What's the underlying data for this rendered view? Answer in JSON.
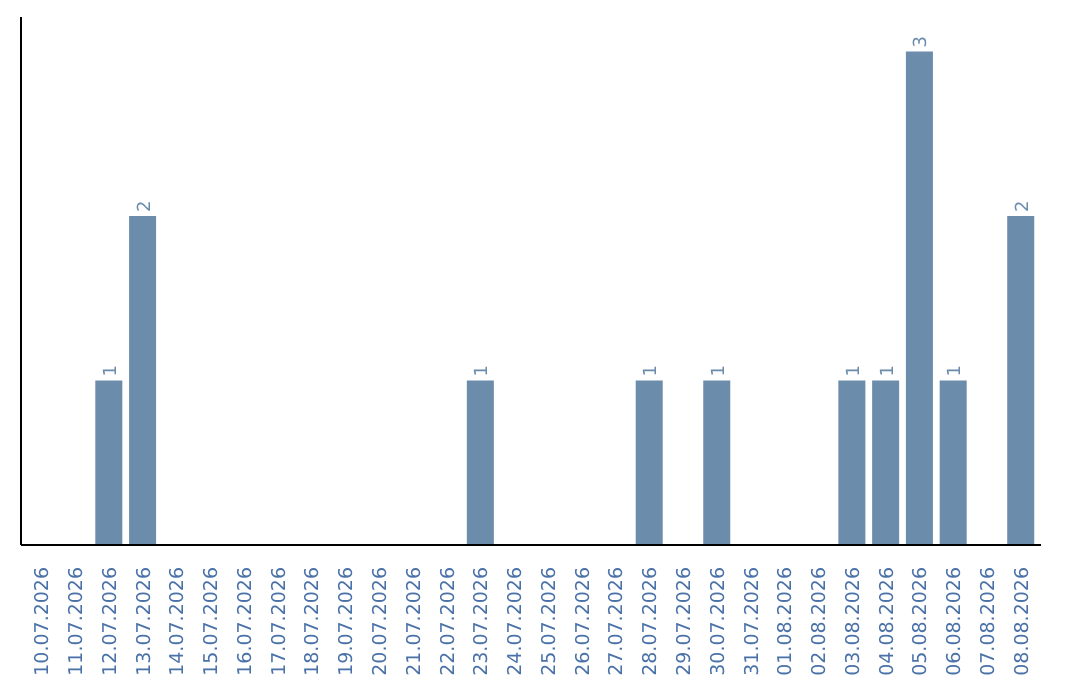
{
  "chart_data": {
    "type": "bar",
    "categories": [
      "10.07.2026",
      "11.07.2026",
      "12.07.2026",
      "13.07.2026",
      "14.07.2026",
      "15.07.2026",
      "16.07.2026",
      "17.07.2026",
      "18.07.2026",
      "19.07.2026",
      "20.07.2026",
      "21.07.2026",
      "22.07.2026",
      "23.07.2026",
      "24.07.2026",
      "25.07.2026",
      "26.07.2026",
      "27.07.2026",
      "28.07.2026",
      "29.07.2026",
      "30.07.2026",
      "31.07.2026",
      "01.08.2026",
      "02.08.2026",
      "03.08.2026",
      "04.08.2026",
      "05.08.2026",
      "06.08.2026",
      "07.08.2026",
      "08.08.2026"
    ],
    "values": [
      0,
      0,
      1,
      2,
      0,
      0,
      0,
      0,
      0,
      0,
      0,
      0,
      0,
      1,
      0,
      0,
      0,
      0,
      1,
      0,
      1,
      0,
      0,
      0,
      1,
      1,
      3,
      1,
      0,
      2
    ],
    "value_labels": [
      null,
      null,
      "1",
      "2",
      null,
      null,
      null,
      null,
      null,
      null,
      null,
      null,
      null,
      "1",
      null,
      null,
      null,
      null,
      "1",
      null,
      "1",
      null,
      null,
      null,
      "1",
      "1",
      "3",
      "1",
      null,
      "2"
    ],
    "color": "#6b8cab",
    "grid": false
  }
}
